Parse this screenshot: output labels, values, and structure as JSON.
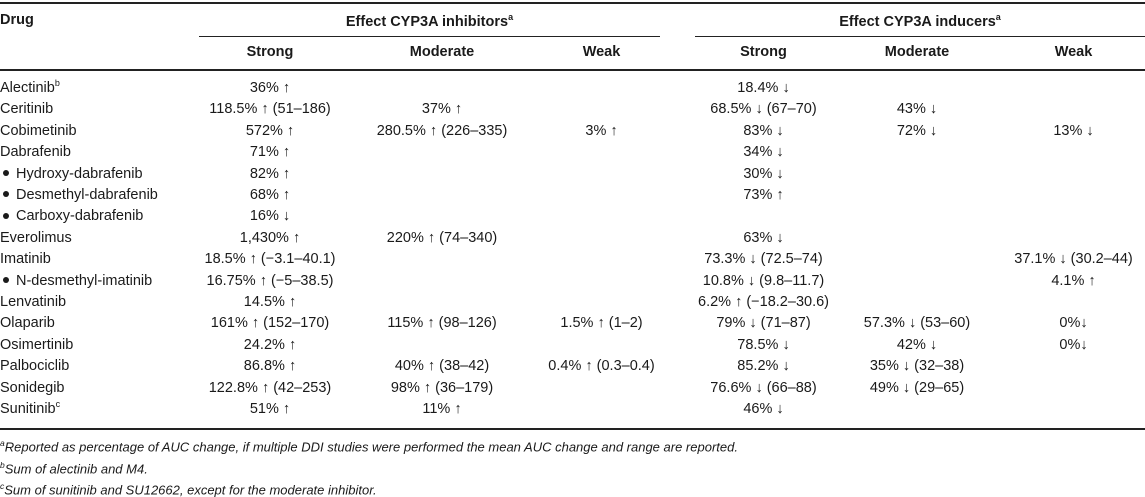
{
  "header": {
    "drug_label": "Drug",
    "group_inhibitors": "Effect CYP3A inhibitors",
    "group_inducers": "Effect CYP3A inducers",
    "group_marker": "a",
    "col_strong": "Strong",
    "col_moderate": "Moderate",
    "col_weak": "Weak"
  },
  "rows": [
    {
      "drug": "Alectinib",
      "sup": "b",
      "sub": false,
      "inh_strong": "36% ↑",
      "inh_moderate": "",
      "inh_weak": "",
      "ind_strong": "18.4% ↓",
      "ind_moderate": "",
      "ind_weak": ""
    },
    {
      "drug": "Ceritinib",
      "sup": "",
      "sub": false,
      "inh_strong": "118.5% ↑ (51–186)",
      "inh_moderate": "37% ↑",
      "inh_weak": "",
      "ind_strong": "68.5% ↓ (67–70)",
      "ind_moderate": "43% ↓",
      "ind_weak": ""
    },
    {
      "drug": "Cobimetinib",
      "sup": "",
      "sub": false,
      "inh_strong": "572% ↑",
      "inh_moderate": "280.5% ↑ (226–335)",
      "inh_weak": "3% ↑",
      "ind_strong": "83% ↓",
      "ind_moderate": "72% ↓",
      "ind_weak": "13% ↓"
    },
    {
      "drug": "Dabrafenib",
      "sup": "",
      "sub": false,
      "inh_strong": "71% ↑",
      "inh_moderate": "",
      "inh_weak": "",
      "ind_strong": "34% ↓",
      "ind_moderate": "",
      "ind_weak": ""
    },
    {
      "drug": "Hydroxy-dabrafenib",
      "sup": "",
      "sub": true,
      "inh_strong": "82% ↑",
      "inh_moderate": "",
      "inh_weak": "",
      "ind_strong": "30% ↓",
      "ind_moderate": "",
      "ind_weak": ""
    },
    {
      "drug": "Desmethyl-dabrafenib",
      "sup": "",
      "sub": true,
      "inh_strong": "68% ↑",
      "inh_moderate": "",
      "inh_weak": "",
      "ind_strong": "73% ↑",
      "ind_moderate": "",
      "ind_weak": ""
    },
    {
      "drug": "Carboxy-dabrafenib",
      "sup": "",
      "sub": true,
      "inh_strong": "16% ↓",
      "inh_moderate": "",
      "inh_weak": "",
      "ind_strong": "",
      "ind_moderate": "",
      "ind_weak": ""
    },
    {
      "drug": "Everolimus",
      "sup": "",
      "sub": false,
      "inh_strong": "1,430% ↑",
      "inh_moderate": "220% ↑ (74–340)",
      "inh_weak": "",
      "ind_strong": "63% ↓",
      "ind_moderate": "",
      "ind_weak": ""
    },
    {
      "drug": "Imatinib",
      "sup": "",
      "sub": false,
      "inh_strong": "18.5% ↑ (−3.1–40.1)",
      "inh_moderate": "",
      "inh_weak": "",
      "ind_strong": "73.3% ↓ (72.5–74)",
      "ind_moderate": "",
      "ind_weak": "37.1% ↓ (30.2–44)"
    },
    {
      "drug": "N-desmethyl-imatinib",
      "sup": "",
      "sub": true,
      "inh_strong": "16.75% ↑ (−5–38.5)",
      "inh_moderate": "",
      "inh_weak": "",
      "ind_strong": "10.8% ↓ (9.8–11.7)",
      "ind_moderate": "",
      "ind_weak": "4.1% ↑"
    },
    {
      "drug": "Lenvatinib",
      "sup": "",
      "sub": false,
      "inh_strong": "14.5% ↑",
      "inh_moderate": "",
      "inh_weak": "",
      "ind_strong": "6.2% ↑ (−18.2–30.6)",
      "ind_moderate": "",
      "ind_weak": ""
    },
    {
      "drug": "Olaparib",
      "sup": "",
      "sub": false,
      "inh_strong": "161% ↑ (152–170)",
      "inh_moderate": "115% ↑ (98–126)",
      "inh_weak": "1.5% ↑ (1–2)",
      "ind_strong": "79% ↓ (71–87)",
      "ind_moderate": "57.3% ↓ (53–60)",
      "ind_weak": "0%↓"
    },
    {
      "drug": "Osimertinib",
      "sup": "",
      "sub": false,
      "inh_strong": "24.2% ↑",
      "inh_moderate": "",
      "inh_weak": "",
      "ind_strong": "78.5% ↓",
      "ind_moderate": "42% ↓",
      "ind_weak": "0%↓"
    },
    {
      "drug": "Palbociclib",
      "sup": "",
      "sub": false,
      "inh_strong": "86.8% ↑",
      "inh_moderate": "40% ↑ (38–42)",
      "inh_weak": "0.4% ↑ (0.3–0.4)",
      "ind_strong": "85.2% ↓",
      "ind_moderate": "35% ↓ (32–38)",
      "ind_weak": ""
    },
    {
      "drug": "Sonidegib",
      "sup": "",
      "sub": false,
      "inh_strong": "122.8% ↑ (42–253)",
      "inh_moderate": "98% ↑ (36–179)",
      "inh_weak": "",
      "ind_strong": "76.6% ↓ (66–88)",
      "ind_moderate": "49% ↓ (29–65)",
      "ind_weak": ""
    },
    {
      "drug": "Sunitinib",
      "sup": "c",
      "sub": false,
      "inh_strong": "51% ↑",
      "inh_moderate": "11% ↑",
      "inh_weak": "",
      "ind_strong": "46% ↓",
      "ind_moderate": "",
      "ind_weak": ""
    }
  ],
  "footnotes": [
    {
      "marker": "a",
      "text": "Reported as percentage of AUC change, if multiple DDI studies were performed the mean AUC change and range are reported."
    },
    {
      "marker": "b",
      "text": "Sum of alectinib and M4."
    },
    {
      "marker": "c",
      "text": "Sum of sunitinib and SU12662, except for the moderate inhibitor."
    }
  ]
}
